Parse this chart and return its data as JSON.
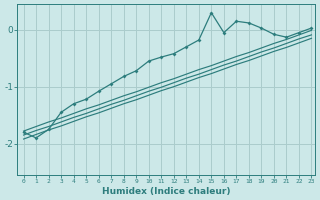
{
  "xlabel": "Humidex (Indice chaleur)",
  "ylabel": "",
  "xlim": [
    -0.5,
    23.3
  ],
  "ylim": [
    -2.55,
    0.45
  ],
  "bg_color": "#cce8e8",
  "line_color": "#2d7d7d",
  "grid_color": "#aacccc",
  "x_data": [
    0,
    1,
    2,
    3,
    4,
    5,
    6,
    7,
    8,
    9,
    10,
    11,
    12,
    13,
    14,
    15,
    16,
    17,
    18,
    19,
    20,
    21,
    22,
    23
  ],
  "jagged_y": [
    -1.8,
    -1.9,
    -1.75,
    -1.45,
    -1.3,
    -1.22,
    -1.08,
    -0.95,
    -0.82,
    -0.72,
    -0.55,
    -0.48,
    -0.42,
    -0.3,
    -0.18,
    0.3,
    -0.05,
    0.15,
    0.12,
    0.03,
    -0.08,
    -0.13,
    -0.05,
    0.03
  ],
  "reg1_y": [
    -1.85,
    -1.77,
    -1.7,
    -1.62,
    -1.54,
    -1.47,
    -1.39,
    -1.31,
    -1.24,
    -1.16,
    -1.08,
    -1.01,
    -0.93,
    -0.85,
    -0.78,
    -0.7,
    -0.62,
    -0.55,
    -0.47,
    -0.39,
    -0.32,
    -0.24,
    -0.16,
    -0.09
  ],
  "reg2_y": [
    -1.92,
    -1.84,
    -1.76,
    -1.69,
    -1.61,
    -1.53,
    -1.46,
    -1.38,
    -1.3,
    -1.23,
    -1.15,
    -1.07,
    -1.0,
    -0.92,
    -0.84,
    -0.77,
    -0.69,
    -0.61,
    -0.54,
    -0.46,
    -0.38,
    -0.31,
    -0.23,
    -0.15
  ],
  "reg3_y": [
    -1.78,
    -1.7,
    -1.62,
    -1.55,
    -1.47,
    -1.39,
    -1.32,
    -1.24,
    -1.16,
    -1.09,
    -1.01,
    -0.93,
    -0.86,
    -0.78,
    -0.7,
    -0.63,
    -0.55,
    -0.47,
    -0.4,
    -0.32,
    -0.24,
    -0.17,
    -0.09,
    -0.01
  ],
  "yticks": [
    0,
    -1,
    -2
  ],
  "xticks": [
    0,
    1,
    2,
    3,
    4,
    5,
    6,
    7,
    8,
    9,
    10,
    11,
    12,
    13,
    14,
    15,
    16,
    17,
    18,
    19,
    20,
    21,
    22,
    23
  ]
}
